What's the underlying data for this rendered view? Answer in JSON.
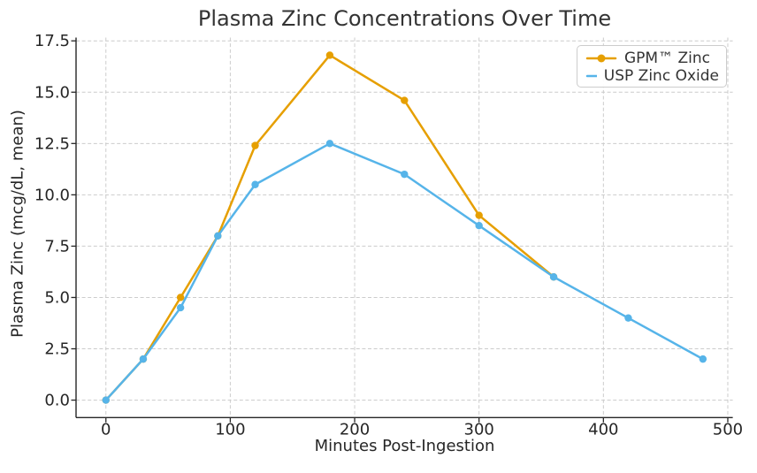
{
  "chart_data": {
    "type": "line",
    "title": "Plasma Zinc Concentrations Over Time",
    "xlabel": "Minutes Post-Ingestion",
    "ylabel": "Plasma Zinc (mcg/dL, mean)",
    "xlim": [
      -24,
      504
    ],
    "ylim": [
      -0.85,
      17.66
    ],
    "xticks": [
      0,
      100,
      200,
      300,
      400,
      500
    ],
    "xtick_labels": [
      "0",
      "100",
      "200",
      "300",
      "400",
      "500"
    ],
    "yticks": [
      0,
      2.5,
      5,
      7.5,
      10,
      12.5,
      15,
      17.5
    ],
    "ytick_labels": [
      "0.0",
      "2.5",
      "5.0",
      "7.5",
      "10.0",
      "12.5",
      "15.0",
      "17.5"
    ],
    "grid": true,
    "grid_style": "dashed",
    "legend_position": "upper right",
    "series": [
      {
        "name": "GPM™ Zinc",
        "color": "#E69F00",
        "x": [
          0,
          30,
          60,
          90,
          120,
          180,
          240,
          300,
          360
        ],
        "values": [
          0.0,
          2.0,
          5.0,
          8.0,
          12.4,
          16.8,
          14.6,
          9.0,
          6.0
        ]
      },
      {
        "name": "USP Zinc Oxide",
        "color": "#56B4E9",
        "x": [
          0,
          30,
          60,
          90,
          120,
          180,
          240,
          300,
          360,
          420,
          480
        ],
        "values": [
          0.0,
          2.0,
          4.5,
          8.0,
          10.5,
          12.5,
          11.0,
          8.5,
          6.0,
          4.0,
          2.0
        ]
      }
    ],
    "colors": {
      "grid": "#cccccc",
      "spine": "#262626",
      "tick_text": "#262626",
      "title_text": "#333333"
    }
  }
}
